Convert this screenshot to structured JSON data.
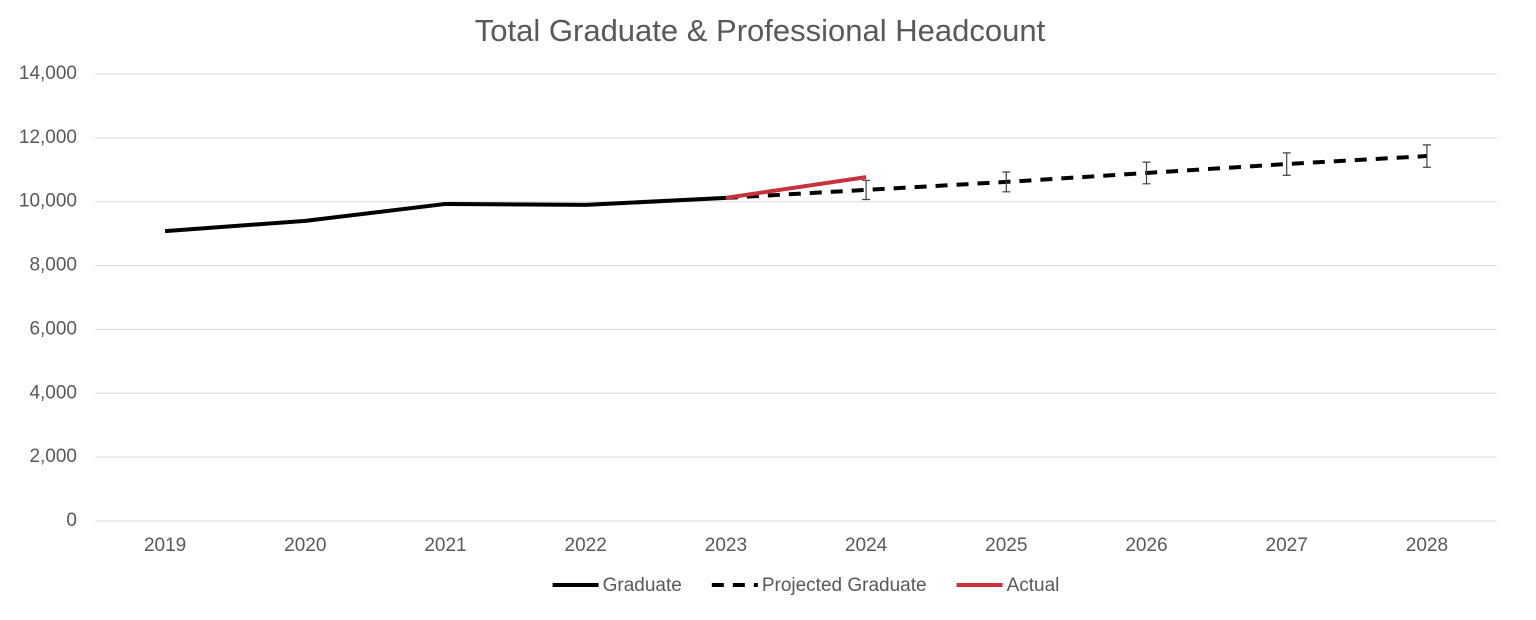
{
  "chart_data": {
    "type": "line",
    "title": "Total Graduate & Professional Headcount",
    "categories": [
      "2019",
      "2020",
      "2021",
      "2022",
      "2023",
      "2024",
      "2025",
      "2026",
      "2027",
      "2028"
    ],
    "series": [
      {
        "name": "Graduate",
        "color": "#000000",
        "style": "solid",
        "values": [
          9080,
          9400,
          9930,
          9900,
          10120,
          null,
          null,
          null,
          null,
          null
        ]
      },
      {
        "name": "Projected Graduate",
        "color": "#000000",
        "style": "dashed",
        "values": [
          null,
          null,
          null,
          null,
          10120,
          10370,
          10620,
          10900,
          11180,
          11430
        ],
        "errors": [
          null,
          null,
          null,
          null,
          null,
          300,
          310,
          340,
          350,
          350
        ]
      },
      {
        "name": "Actual",
        "color": "#c8323c",
        "style": "solid",
        "values": [
          null,
          null,
          null,
          null,
          10120,
          10770,
          null,
          null,
          null,
          null
        ]
      }
    ],
    "ylim": [
      0,
      14000
    ],
    "yticks": [
      0,
      {
        "value": 2000,
        "label": "2,000"
      },
      {
        "value": 4000,
        "label": "4,000"
      },
      {
        "value": 6000,
        "label": "6,000"
      },
      {
        "value": 8000,
        "label": "8,000"
      },
      {
        "value": 10000,
        "label": "10,000"
      },
      {
        "value": 12000,
        "label": "12,000"
      },
      {
        "value": 14000,
        "label": "14,000"
      }
    ],
    "grid": true,
    "legend": "bottom"
  }
}
